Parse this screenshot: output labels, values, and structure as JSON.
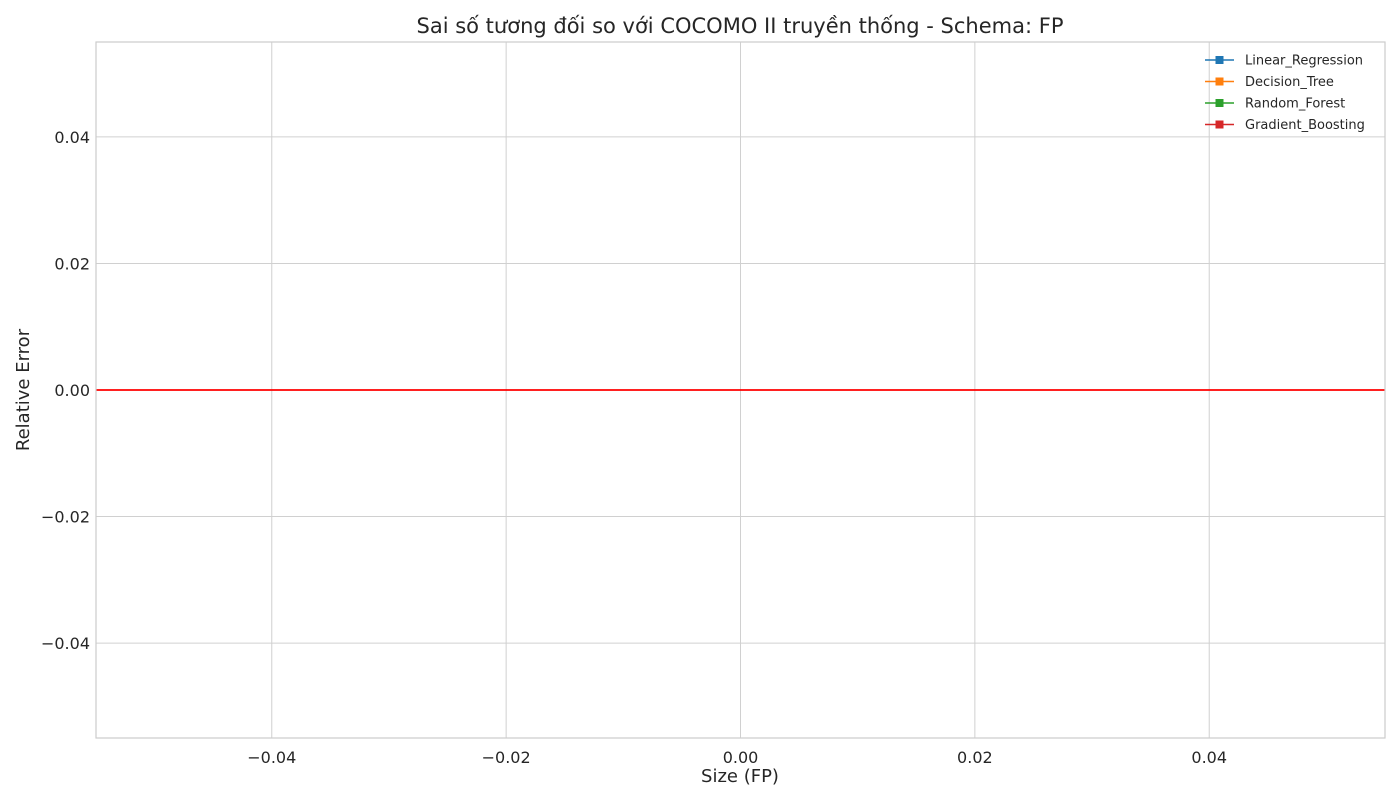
{
  "chart_data": {
    "type": "line",
    "title": "Sai số tương đối so với COCOMO II truyền thống - Schema: FP",
    "xlabel": "Size (FP)",
    "ylabel": "Relative Error",
    "xlim": [
      -0.055,
      0.055
    ],
    "ylim": [
      -0.055,
      0.055
    ],
    "x_ticks": [
      -0.04,
      -0.02,
      0.0,
      0.02,
      0.04
    ],
    "y_ticks": [
      -0.04,
      -0.02,
      0.0,
      0.02,
      0.04
    ],
    "x_tick_labels": [
      "−0.04",
      "−0.02",
      "0.00",
      "0.02",
      "0.04"
    ],
    "y_tick_labels": [
      "−0.04",
      "−0.02",
      "0.00",
      "0.02",
      "0.04"
    ],
    "grid": true,
    "legend_position": "top-right",
    "series": [
      {
        "name": "Linear_Regression",
        "color": "#1f77b4",
        "marker": "square",
        "x": [],
        "y": []
      },
      {
        "name": "Decision_Tree",
        "color": "#ff7f0e",
        "marker": "square",
        "x": [],
        "y": []
      },
      {
        "name": "Random_Forest",
        "color": "#2ca02c",
        "marker": "square",
        "x": [],
        "y": []
      },
      {
        "name": "Gradient_Boosting",
        "color": "#d62728",
        "marker": "square",
        "x": [],
        "y": []
      }
    ],
    "reference_line": {
      "y": 0.0,
      "color": "#ff0000"
    }
  }
}
